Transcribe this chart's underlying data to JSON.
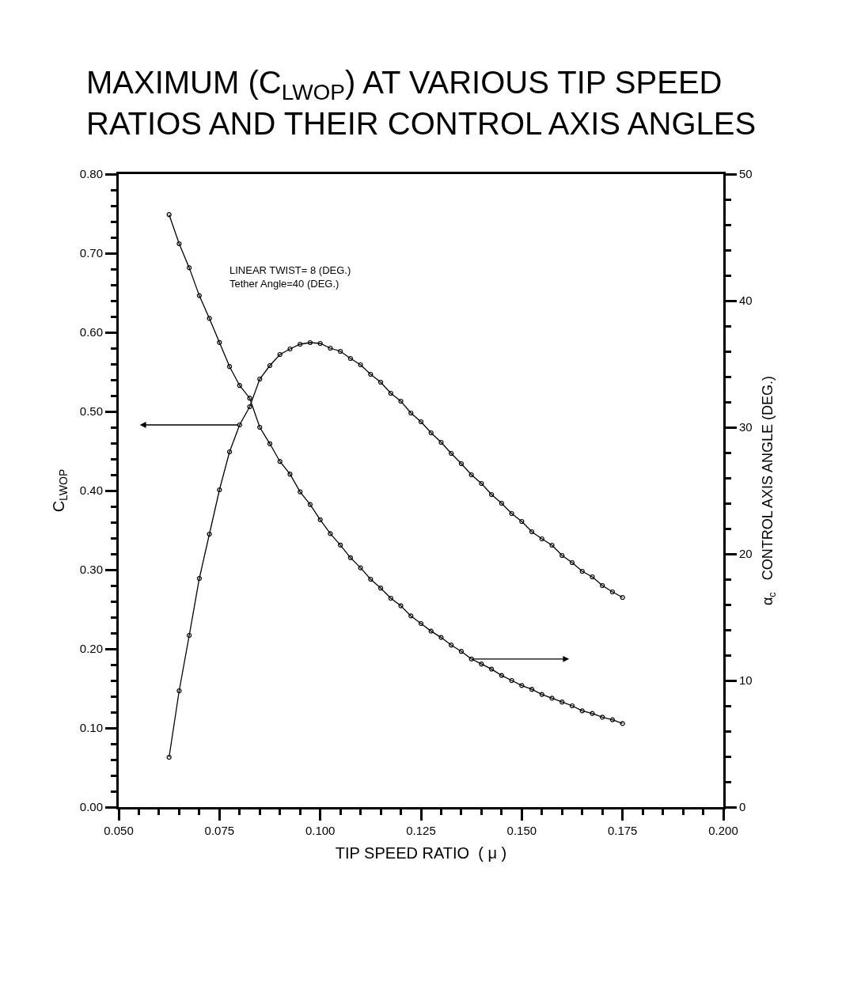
{
  "chart_data": {
    "type": "line",
    "title": "MAXIMUM (C$_{LWOP}$) AT VARIOUS TIP SPEED\nRATIOS AND THEIR CONTROL AXIS ANGLES",
    "xlabel": "TIP SPEED RATIO  ( μ )",
    "ylabel": "C$_{LWOP}$",
    "y2label": "α$_{c}$   CONTROL AXIS ANGLE (DEG.)",
    "annotations": [
      "LINEAR TWIST= 8 (DEG.)\nTether Angle=40 (DEG.)"
    ],
    "x": [
      0.0625,
      0.065,
      0.0675,
      0.07,
      0.0725,
      0.075,
      0.0775,
      0.08,
      0.0825,
      0.085,
      0.0875,
      0.09,
      0.0925,
      0.095,
      0.0975,
      0.1,
      0.1025,
      0.105,
      0.1075,
      0.11,
      0.1125,
      0.115,
      0.1175,
      0.12,
      0.1225,
      0.125,
      0.1275,
      0.13,
      0.1325,
      0.135,
      0.1375,
      0.14,
      0.1425,
      0.145,
      0.1475,
      0.15,
      0.1525,
      0.155,
      0.1575,
      0.16,
      0.1625,
      0.165,
      0.1675,
      0.17,
      0.1725,
      0.175
    ],
    "series": [
      {
        "color": "#000000",
        "values": [
          0.063,
          0.147,
          0.217,
          0.289,
          0.345,
          0.401,
          0.449,
          0.483,
          0.506,
          0.541,
          0.558,
          0.572,
          0.579,
          0.585,
          0.587,
          0.586,
          0.58,
          0.576,
          0.567,
          0.559,
          0.547,
          0.537,
          0.523,
          0.513,
          0.498,
          0.487,
          0.473,
          0.461,
          0.447,
          0.434,
          0.42,
          0.409,
          0.395,
          0.384,
          0.371,
          0.361,
          0.348,
          0.339,
          0.331,
          0.318,
          0.309,
          0.298,
          0.291,
          0.28,
          0.272,
          0.265
        ]
      },
      {
        "color": "#000000",
        "axis": "y2",
        "values": [
          46.8,
          44.5,
          42.6,
          40.4,
          38.6,
          36.7,
          34.8,
          33.3,
          32.3,
          30.0,
          28.7,
          27.3,
          26.3,
          24.9,
          23.9,
          22.7,
          21.6,
          20.7,
          19.7,
          18.9,
          18.0,
          17.3,
          16.5,
          15.9,
          15.1,
          14.5,
          13.9,
          13.4,
          12.8,
          12.3,
          11.7,
          11.3,
          10.9,
          10.4,
          10.0,
          9.6,
          9.3,
          8.9,
          8.6,
          8.3,
          8.0,
          7.6,
          7.4,
          7.1,
          6.9,
          6.6
        ]
      }
    ],
    "xlim": [
      0.05,
      0.2
    ],
    "xticks": [
      {
        "value": 0.05,
        "label": "0.050"
      },
      {
        "value": 0.075,
        "label": "0.075"
      },
      {
        "value": 0.1,
        "label": "0.100"
      },
      {
        "value": 0.125,
        "label": "0.125"
      },
      {
        "value": 0.15,
        "label": "0.150"
      },
      {
        "value": 0.175,
        "label": "0.175"
      },
      {
        "value": 0.2,
        "label": "0.200"
      }
    ],
    "ylim": [
      0,
      0.8
    ],
    "yticks": [
      {
        "value": 0,
        "label": "0.00"
      },
      {
        "value": 0.1,
        "label": "0.10"
      },
      {
        "value": 0.2,
        "label": "0.20"
      },
      {
        "value": 0.3,
        "label": "0.30"
      },
      {
        "value": 0.4,
        "label": "0.40"
      },
      {
        "value": 0.5,
        "label": "0.50"
      },
      {
        "value": 0.6,
        "label": "0.60"
      },
      {
        "value": 0.7,
        "label": "0.70"
      },
      {
        "value": 0.8,
        "label": "0.80"
      }
    ],
    "y2lim": [
      0,
      50
    ],
    "y2ticks": [
      0,
      10,
      20,
      30,
      40,
      50
    ],
    "marker": "circle",
    "line_style": "solid"
  }
}
